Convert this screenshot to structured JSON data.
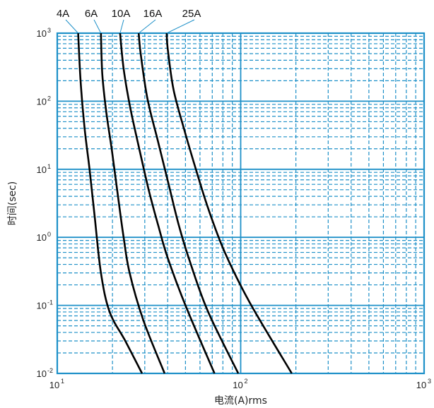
{
  "chart_data": {
    "type": "line",
    "xscale": "log",
    "yscale": "log",
    "xlim": [
      10,
      1000
    ],
    "ylim": [
      0.01,
      1000
    ],
    "xlabel": "电流(A)rms",
    "ylabel": "时间(sec)",
    "x_ticks": [
      {
        "base": "10",
        "exp": "1"
      },
      {
        "base": "10",
        "exp": "2"
      },
      {
        "base": "10",
        "exp": "3"
      }
    ],
    "y_ticks": [
      {
        "base": "10",
        "exp": "-2"
      },
      {
        "base": "10",
        "exp": "-1"
      },
      {
        "base": "10",
        "exp": "0"
      },
      {
        "base": "10",
        "exp": "1"
      },
      {
        "base": "10",
        "exp": "2"
      },
      {
        "base": "10",
        "exp": "3"
      }
    ],
    "grid": true,
    "colors": {
      "grid": "#1e90c8",
      "frame": "#1e90c8",
      "curve": "#000000",
      "leader": "#1e90c8"
    },
    "series": [
      {
        "name": "4A",
        "points": [
          [
            13.0,
            1000
          ],
          [
            13.4,
            200
          ],
          [
            14.1,
            40
          ],
          [
            15.0,
            10
          ],
          [
            16.0,
            2
          ],
          [
            17.3,
            0.3
          ],
          [
            19.3,
            0.08
          ],
          [
            23.5,
            0.03
          ],
          [
            29.0,
            0.01
          ]
        ]
      },
      {
        "name": "6A",
        "points": [
          [
            17.3,
            1000
          ],
          [
            17.6,
            250
          ],
          [
            18.5,
            70
          ],
          [
            19.8,
            20
          ],
          [
            21.2,
            5
          ],
          [
            23.0,
            1
          ],
          [
            24.8,
            0.3
          ],
          [
            29.5,
            0.06
          ],
          [
            38.5,
            0.01
          ]
        ]
      },
      {
        "name": "10A",
        "points": [
          [
            22.0,
            1000
          ],
          [
            23.0,
            300
          ],
          [
            25.0,
            80
          ],
          [
            28.0,
            20
          ],
          [
            31.5,
            5
          ],
          [
            35.5,
            1.5
          ],
          [
            40.0,
            0.5
          ],
          [
            50.0,
            0.1
          ],
          [
            72.0,
            0.01
          ]
        ]
      },
      {
        "name": "16A",
        "points": [
          [
            27.8,
            1000
          ],
          [
            28.5,
            500
          ],
          [
            31.0,
            110
          ],
          [
            35.5,
            25
          ],
          [
            40.5,
            6
          ],
          [
            46.0,
            1.5
          ],
          [
            53.5,
            0.4
          ],
          [
            66.5,
            0.08
          ],
          [
            97.0,
            0.01
          ]
        ]
      },
      {
        "name": "25A",
        "points": [
          [
            39.5,
            1000
          ],
          [
            40.0,
            600
          ],
          [
            43.0,
            150
          ],
          [
            49.0,
            40
          ],
          [
            57.0,
            10
          ],
          [
            67.0,
            2.5
          ],
          [
            82.0,
            0.6
          ],
          [
            112.0,
            0.11
          ],
          [
            190.0,
            0.01
          ]
        ]
      }
    ]
  }
}
